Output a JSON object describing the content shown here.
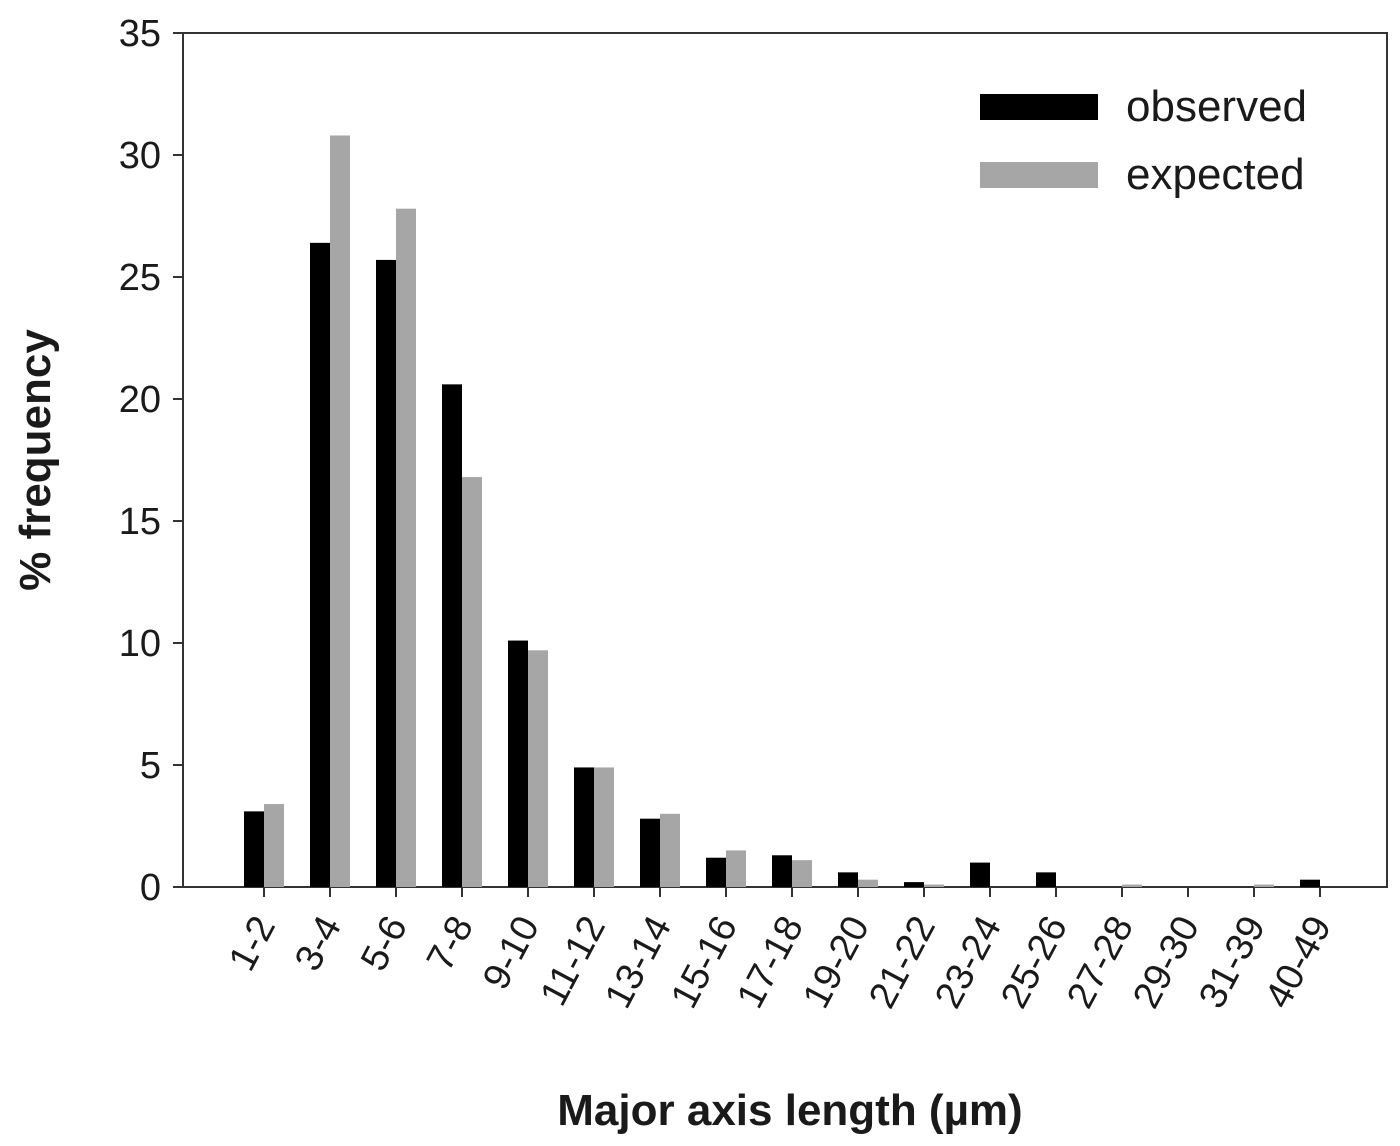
{
  "chart_data": {
    "type": "bar",
    "xlabel": "Major axis length (µm)",
    "ylabel": "% frequency",
    "ylim": [
      0,
      35
    ],
    "yticks": [
      0,
      5,
      10,
      15,
      20,
      25,
      30,
      35
    ],
    "categories": [
      "1-2",
      "3-4",
      "5-6",
      "7-8",
      "9-10",
      "11-12",
      "13-14",
      "15-16",
      "17-18",
      "19-20",
      "21-22",
      "23-24",
      "25-26",
      "27-28",
      "29-30",
      "31-39",
      "40-49"
    ],
    "series": [
      {
        "name": "observed",
        "color": "#000000",
        "values": [
          3.1,
          26.4,
          25.7,
          20.6,
          10.1,
          4.9,
          2.8,
          1.2,
          1.3,
          0.6,
          0.2,
          1.0,
          0.6,
          0.0,
          0.0,
          0.0,
          0.3
        ]
      },
      {
        "name": "expected",
        "color": "#a6a6a6",
        "values": [
          3.4,
          30.8,
          27.8,
          16.8,
          9.7,
          4.9,
          3.0,
          1.5,
          1.1,
          0.3,
          0.1,
          0.0,
          0.0,
          0.1,
          0.0,
          0.1,
          0.0
        ]
      }
    ],
    "legend_position": "top-right",
    "grid": false
  }
}
